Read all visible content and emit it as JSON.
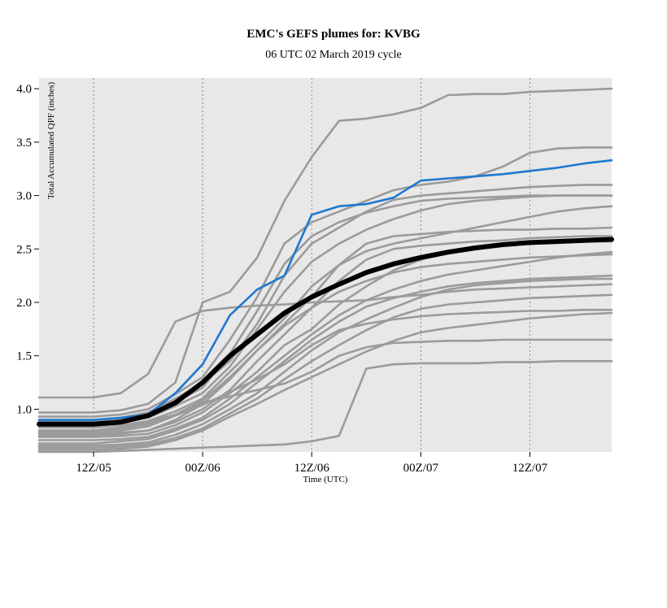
{
  "title": "EMC's GEFS plumes for: KVBG",
  "subtitle": "06 UTC 02 March 2019 cycle",
  "colors": {
    "panel": "#e8e8e8",
    "member": "#9b9b9b",
    "control": "#1f78d1",
    "mean": "#000000",
    "grid": "#8a8a8a"
  },
  "chart_data": {
    "type": "line",
    "title": "EMC's GEFS plumes for: KVBG",
    "subtitle": "06 UTC 02 March 2019 cycle",
    "xlabel": "Time (UTC)",
    "ylabel": "Total Accumulated QPF (inches)",
    "x_units": "hours since 06 UTC 02 March 2019",
    "xlim": [
      66,
      192
    ],
    "ylim": [
      0.6,
      4.1
    ],
    "x_ticks": [
      {
        "x": 78,
        "label": "12Z/05"
      },
      {
        "x": 102,
        "label": "00Z/06"
      },
      {
        "x": 126,
        "label": "12Z/06"
      },
      {
        "x": 150,
        "label": "00Z/07"
      },
      {
        "x": 174,
        "label": "12Z/07"
      }
    ],
    "y_ticks": [
      {
        "y": 1.0,
        "label": "1.0"
      },
      {
        "y": 1.5,
        "label": "1.5"
      },
      {
        "y": 2.0,
        "label": "2.0"
      },
      {
        "y": 2.5,
        "label": "2.5"
      },
      {
        "y": 3.0,
        "label": "3.0"
      },
      {
        "y": 3.5,
        "label": "3.5"
      },
      {
        "y": 4.0,
        "label": "4.0"
      }
    ],
    "grid": "vertical dotted lines at x ticks",
    "legend": "none",
    "x": [
      66,
      72,
      78,
      84,
      90,
      96,
      102,
      108,
      114,
      120,
      126,
      132,
      138,
      144,
      150,
      156,
      162,
      168,
      174,
      180,
      186,
      192
    ],
    "members": [
      {
        "values": [
          1.11,
          1.11,
          1.11,
          1.15,
          1.33,
          1.82,
          1.92,
          1.95,
          1.97,
          1.98,
          2.0,
          2.01,
          2.02,
          2.05,
          2.07,
          2.1,
          2.12,
          2.13,
          2.14,
          2.15,
          2.16,
          2.17
        ]
      },
      {
        "values": [
          0.97,
          0.97,
          0.97,
          0.99,
          1.05,
          1.25,
          2.0,
          2.1,
          2.42,
          2.95,
          3.36,
          3.7,
          3.72,
          3.76,
          3.82,
          3.94,
          3.95,
          3.95,
          3.97,
          3.98,
          3.99,
          4.0
        ]
      },
      {
        "values": [
          0.93,
          0.93,
          0.93,
          0.95,
          1.0,
          1.14,
          1.3,
          1.65,
          2.05,
          2.55,
          2.75,
          2.85,
          2.95,
          3.05,
          3.1,
          3.13,
          3.18,
          3.27,
          3.4,
          3.44,
          3.45,
          3.45
        ]
      },
      {
        "values": [
          0.9,
          0.9,
          0.9,
          0.92,
          0.97,
          1.1,
          1.24,
          1.45,
          1.8,
          2.25,
          2.55,
          2.7,
          2.85,
          2.96,
          3.0,
          3.02,
          3.04,
          3.06,
          3.08,
          3.09,
          3.1,
          3.1
        ]
      },
      {
        "values": [
          0.88,
          0.88,
          0.88,
          0.9,
          0.94,
          1.07,
          1.2,
          1.52,
          1.92,
          2.36,
          2.62,
          2.75,
          2.84,
          2.9,
          2.95,
          2.97,
          2.98,
          2.99,
          3.0,
          3.0,
          3.0,
          3.0
        ]
      },
      {
        "values": [
          0.86,
          0.86,
          0.86,
          0.88,
          0.92,
          1.03,
          1.15,
          1.4,
          1.75,
          2.1,
          2.38,
          2.55,
          2.68,
          2.78,
          2.86,
          2.92,
          2.95,
          2.97,
          2.99,
          3.0,
          3.0,
          3.0
        ]
      },
      {
        "values": [
          0.83,
          0.83,
          0.83,
          0.85,
          0.89,
          0.98,
          1.1,
          1.35,
          1.6,
          1.85,
          2.15,
          2.35,
          2.48,
          2.55,
          2.6,
          2.65,
          2.7,
          2.75,
          2.8,
          2.85,
          2.88,
          2.9
        ]
      },
      {
        "values": [
          0.8,
          0.8,
          0.8,
          0.82,
          0.86,
          0.95,
          1.08,
          1.3,
          1.55,
          1.8,
          2.05,
          2.35,
          2.55,
          2.62,
          2.64,
          2.66,
          2.67,
          2.68,
          2.68,
          2.69,
          2.69,
          2.7
        ]
      },
      {
        "values": [
          0.77,
          0.77,
          0.77,
          0.78,
          0.8,
          0.88,
          1.0,
          1.18,
          1.45,
          1.7,
          1.95,
          2.2,
          2.4,
          2.5,
          2.53,
          2.55,
          2.57,
          2.58,
          2.6,
          2.61,
          2.62,
          2.62
        ]
      },
      {
        "values": [
          0.74,
          0.74,
          0.74,
          0.75,
          0.77,
          0.85,
          0.97,
          1.15,
          1.35,
          1.6,
          1.75,
          1.98,
          2.15,
          2.3,
          2.4,
          2.46,
          2.5,
          2.53,
          2.55,
          2.56,
          2.57,
          2.57
        ]
      },
      {
        "values": [
          0.71,
          0.71,
          0.71,
          0.72,
          0.74,
          0.82,
          0.92,
          1.1,
          1.3,
          1.5,
          1.7,
          1.88,
          2.02,
          2.12,
          2.2,
          2.26,
          2.3,
          2.34,
          2.38,
          2.42,
          2.45,
          2.47
        ]
      },
      {
        "values": [
          0.68,
          0.68,
          0.68,
          0.7,
          0.72,
          0.8,
          0.9,
          1.05,
          1.25,
          1.45,
          1.65,
          1.82,
          1.96,
          2.04,
          2.1,
          2.15,
          2.18,
          2.2,
          2.22,
          2.23,
          2.24,
          2.25
        ]
      },
      {
        "values": [
          0.66,
          0.66,
          0.66,
          0.67,
          0.69,
          0.76,
          0.86,
          1.0,
          1.15,
          1.35,
          1.55,
          1.72,
          1.84,
          1.95,
          2.05,
          2.12,
          2.16,
          2.18,
          2.2,
          2.21,
          2.22,
          2.22
        ]
      },
      {
        "values": [
          0.64,
          0.64,
          0.64,
          0.65,
          0.67,
          0.73,
          0.82,
          0.96,
          1.1,
          1.28,
          1.45,
          1.6,
          1.74,
          1.86,
          1.94,
          1.98,
          2.0,
          2.02,
          2.04,
          2.05,
          2.06,
          2.07
        ]
      },
      {
        "values": [
          0.62,
          0.62,
          0.62,
          0.63,
          0.65,
          0.71,
          0.8,
          0.93,
          1.05,
          1.18,
          1.3,
          1.42,
          1.54,
          1.64,
          1.72,
          1.76,
          1.79,
          1.82,
          1.85,
          1.87,
          1.89,
          1.9
        ]
      },
      {
        "values": [
          0.6,
          0.6,
          0.6,
          0.61,
          0.62,
          0.63,
          0.64,
          0.65,
          0.66,
          0.67,
          0.7,
          0.75,
          1.38,
          1.42,
          1.43,
          1.43,
          1.43,
          1.44,
          1.44,
          1.45,
          1.45,
          1.45
        ]
      },
      {
        "values": [
          0.8,
          0.8,
          0.8,
          0.83,
          0.88,
          0.95,
          1.06,
          1.12,
          1.18,
          1.24,
          1.35,
          1.5,
          1.58,
          1.62,
          1.63,
          1.64,
          1.64,
          1.65,
          1.65,
          1.65,
          1.65,
          1.65
        ]
      },
      {
        "values": [
          0.78,
          0.78,
          0.78,
          0.8,
          0.84,
          0.94,
          1.04,
          1.16,
          1.28,
          1.42,
          1.6,
          1.74,
          1.8,
          1.84,
          1.87,
          1.89,
          1.9,
          1.91,
          1.92,
          1.92,
          1.93,
          1.93
        ]
      },
      {
        "values": [
          0.75,
          0.75,
          0.75,
          0.77,
          0.8,
          0.9,
          1.05,
          1.28,
          1.55,
          1.78,
          1.95,
          2.1,
          2.2,
          2.28,
          2.33,
          2.36,
          2.38,
          2.4,
          2.42,
          2.43,
          2.44,
          2.45
        ]
      }
    ],
    "series": [
      {
        "role": "control",
        "values": [
          0.9,
          0.9,
          0.9,
          0.92,
          0.95,
          1.15,
          1.42,
          1.88,
          2.12,
          2.25,
          2.82,
          2.9,
          2.92,
          2.98,
          3.14,
          3.16,
          3.18,
          3.2,
          3.23,
          3.26,
          3.3,
          3.33
        ]
      },
      {
        "role": "ensemble mean",
        "values": [
          0.86,
          0.86,
          0.86,
          0.88,
          0.94,
          1.06,
          1.25,
          1.5,
          1.7,
          1.9,
          2.05,
          2.17,
          2.28,
          2.36,
          2.42,
          2.47,
          2.51,
          2.54,
          2.56,
          2.57,
          2.58,
          2.59
        ]
      }
    ]
  }
}
